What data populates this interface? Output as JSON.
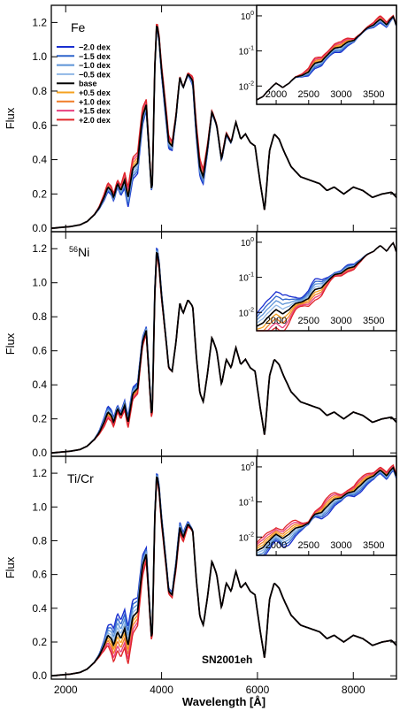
{
  "figure": {
    "ylabel": "Flux",
    "xlabel": "Wavelength [Å]",
    "object_label": "SN2001eh"
  },
  "colors": {
    "-2.0 dex": "#1a2fd0",
    "-1.5 dex": "#2f64cc",
    "-1.0 dex": "#5b92d6",
    "-0.5 dex": "#8fb7e6",
    "base": "#000000",
    "+0.5 dex": "#f5a11f",
    "+1.0 dex": "#f07d2a",
    "+1.5 dex": "#e8407f",
    "+2.0 dex": "#e0262a"
  },
  "legend": {
    "placement": "upper-left of top panel",
    "entries": [
      "−2.0 dex",
      "−1.5 dex",
      "−1.0 dex",
      "−0.5 dex",
      "base",
      "+0.5 dex",
      "+1.0 dex",
      "+1.5 dex",
      "+2.0 dex"
    ]
  },
  "chart_data": [
    {
      "type": "line",
      "panel_label": "Fe",
      "xlabel": "",
      "ylabel": "Flux",
      "xlim": [
        1700,
        8900
      ],
      "ylim": [
        -0.02,
        1.3
      ],
      "xticks": [
        2000,
        4000,
        6000,
        8000
      ],
      "yticks": [
        0.0,
        0.2,
        0.4,
        0.6,
        0.8,
        1.0,
        1.2
      ],
      "series_spread": {
        "2900": 0.05,
        "3300": 0.1,
        "3550": 0.1,
        "4100": 0.08,
        "4800": 0.1,
        "5300": 0.02
      },
      "series": [
        {
          "name": "−2.0 dex",
          "shift": -1.0
        },
        {
          "name": "−1.5 dex",
          "shift": -0.75
        },
        {
          "name": "−1.0 dex",
          "shift": -0.5
        },
        {
          "name": "−0.5 dex",
          "shift": -0.25
        },
        {
          "name": "base",
          "shift": 0
        },
        {
          "name": "+0.5 dex",
          "shift": 0.25
        },
        {
          "name": "+1.0 dex",
          "shift": 0.5
        },
        {
          "name": "+1.5 dex",
          "shift": 0.75
        },
        {
          "name": "+2.0 dex",
          "shift": 1.0
        }
      ],
      "inset": {
        "type": "line",
        "yscale": "log",
        "xlim": [
          1700,
          3850
        ],
        "ylim": [
          0.003,
          2.0
        ],
        "xticks": [
          2000,
          2500,
          3000,
          3500
        ],
        "yticks": [
          "10^-2",
          "10^-1",
          "10^0"
        ],
        "spread": {
          "1800": 0.0,
          "2600": 0.15,
          "3000": 0.15,
          "3600": 0.1
        }
      }
    },
    {
      "type": "line",
      "panel_label": "56Ni",
      "xlabel": "",
      "ylabel": "Flux",
      "xlim": [
        1700,
        8900
      ],
      "ylim": [
        -0.02,
        1.3
      ],
      "xticks": [
        2000,
        4000,
        6000,
        8000
      ],
      "yticks": [
        0.0,
        0.2,
        0.4,
        0.6,
        0.8,
        1.0,
        1.2
      ],
      "series_spread": {
        "2900": 0.07,
        "3300": 0.06,
        "3550": 0.05,
        "3900": 0.05
      },
      "series": [
        {
          "name": "−2.0 dex",
          "shift": 1.0
        },
        {
          "name": "−1.5 dex",
          "shift": 0.75
        },
        {
          "name": "−1.0 dex",
          "shift": 0.5
        },
        {
          "name": "−0.5 dex",
          "shift": 0.25
        },
        {
          "name": "base",
          "shift": 0
        },
        {
          "name": "+0.5 dex",
          "shift": -0.25
        },
        {
          "name": "+1.0 dex",
          "shift": -0.5
        },
        {
          "name": "+1.5 dex",
          "shift": -0.75
        },
        {
          "name": "+2.0 dex",
          "shift": -1.0
        }
      ],
      "inset": {
        "type": "line",
        "yscale": "log",
        "xlim": [
          1700,
          3850
        ],
        "ylim": [
          0.003,
          2.0
        ],
        "xticks": [
          2000,
          2500,
          3000,
          3500
        ],
        "yticks": [
          "10^-2",
          "10^-1",
          "10^0"
        ],
        "spread": {
          "1800": 0.45,
          "2100": 0.5,
          "2600": 0.3,
          "3100": 0.1
        }
      }
    },
    {
      "type": "line",
      "panel_label": "Ti/Cr",
      "xlabel": "Wavelength [Å]",
      "ylabel": "Flux",
      "xlim": [
        1700,
        8900
      ],
      "ylim": [
        -0.02,
        1.3
      ],
      "xticks": [
        2000,
        4000,
        6000,
        8000
      ],
      "yticks": [
        0.0,
        0.2,
        0.4,
        0.6,
        0.8,
        1.0,
        1.2
      ],
      "annotation": "SN2001eh",
      "series_spread": {
        "2900": 0.05,
        "3050": 0.16,
        "3300": 0.18,
        "3550": 0.12,
        "4000": 0.05,
        "4400": 0.06
      },
      "series": [
        {
          "name": "−2.0 dex",
          "shift": 1.0
        },
        {
          "name": "−1.5 dex",
          "shift": 0.75
        },
        {
          "name": "−1.0 dex",
          "shift": 0.5
        },
        {
          "name": "−0.5 dex",
          "shift": 0.25
        },
        {
          "name": "base",
          "shift": 0
        },
        {
          "name": "+0.5 dex",
          "shift": -0.25
        },
        {
          "name": "+1.0 dex",
          "shift": -0.5
        },
        {
          "name": "+1.5 dex",
          "shift": -0.75
        },
        {
          "name": "+2.0 dex",
          "shift": -1.0
        }
      ],
      "inset": {
        "type": "line",
        "yscale": "log",
        "xlim": [
          1700,
          3850
        ],
        "ylim": [
          0.003,
          2.0
        ],
        "xticks": [
          2000,
          2500,
          3000,
          3500
        ],
        "yticks": [
          "10^-2",
          "10^-1",
          "10^0"
        ],
        "spread": {
          "1800": -0.3,
          "2200": -0.3,
          "2800": -0.25,
          "3300": -0.2,
          "3700": -0.1
        }
      }
    }
  ],
  "base_spectrum": {
    "x": [
      1700,
      2100,
      2300,
      2450,
      2600,
      2700,
      2800,
      2880,
      2950,
      3000,
      3080,
      3150,
      3230,
      3300,
      3400,
      3500,
      3600,
      3680,
      3740,
      3800,
      3860,
      3900,
      3950,
      4000,
      4080,
      4150,
      4220,
      4300,
      4380,
      4450,
      4550,
      4650,
      4730,
      4800,
      4870,
      4950,
      5050,
      5150,
      5250,
      5350,
      5450,
      5550,
      5650,
      5750,
      5850,
      5950,
      6050,
      6150,
      6250,
      6350,
      6450,
      6550,
      6700,
      6900,
      7100,
      7300,
      7450,
      7600,
      7800,
      8000,
      8200,
      8400,
      8600,
      8800,
      8900
    ],
    "y": [
      0.0,
      0.01,
      0.02,
      0.04,
      0.08,
      0.12,
      0.18,
      0.24,
      0.22,
      0.18,
      0.26,
      0.22,
      0.28,
      0.18,
      0.35,
      0.38,
      0.65,
      0.72,
      0.45,
      0.18,
      0.95,
      1.2,
      1.1,
      0.92,
      0.7,
      0.5,
      0.48,
      0.65,
      0.88,
      0.82,
      0.9,
      0.86,
      0.55,
      0.35,
      0.3,
      0.45,
      0.68,
      0.6,
      0.4,
      0.55,
      0.5,
      0.62,
      0.52,
      0.55,
      0.5,
      0.48,
      0.28,
      0.1,
      0.45,
      0.55,
      0.52,
      0.45,
      0.36,
      0.3,
      0.28,
      0.26,
      0.22,
      0.24,
      0.2,
      0.24,
      0.22,
      0.18,
      0.2,
      0.21,
      0.18
    ]
  },
  "base_inset": {
    "x": [
      1700,
      1800,
      1900,
      2000,
      2100,
      2200,
      2300,
      2400,
      2500,
      2600,
      2700,
      2800,
      2900,
      3000,
      3100,
      3200,
      3300,
      3400,
      3500,
      3600,
      3700,
      3800,
      3850
    ],
    "y": [
      0.004,
      0.005,
      0.008,
      0.012,
      0.009,
      0.012,
      0.018,
      0.02,
      0.025,
      0.045,
      0.05,
      0.08,
      0.12,
      0.13,
      0.18,
      0.2,
      0.3,
      0.45,
      0.55,
      0.8,
      0.55,
      0.95,
      0.5
    ]
  }
}
